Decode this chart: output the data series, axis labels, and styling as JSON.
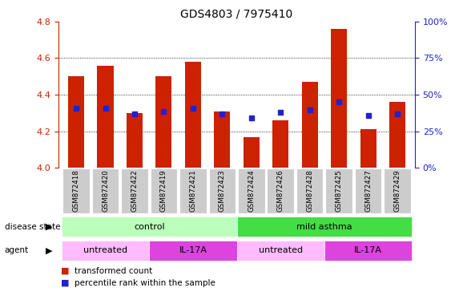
{
  "title": "GDS4803 / 7975410",
  "samples": [
    "GSM872418",
    "GSM872420",
    "GSM872422",
    "GSM872419",
    "GSM872421",
    "GSM872423",
    "GSM872424",
    "GSM872426",
    "GSM872428",
    "GSM872425",
    "GSM872427",
    "GSM872429"
  ],
  "bar_values": [
    4.5,
    4.56,
    4.3,
    4.5,
    4.58,
    4.31,
    4.17,
    4.26,
    4.47,
    4.76,
    4.21,
    4.36
  ],
  "blue_values": [
    4.325,
    4.325,
    4.295,
    4.31,
    4.325,
    4.295,
    4.275,
    4.305,
    4.315,
    4.36,
    4.285,
    4.295
  ],
  "bar_bottom": 4.0,
  "ylim": [
    4.0,
    4.8
  ],
  "yticks_left": [
    4.0,
    4.2,
    4.4,
    4.6,
    4.8
  ],
  "ytick_right_labels": [
    "0%",
    "25%",
    "50%",
    "75%",
    "100%"
  ],
  "bar_color": "#cc2200",
  "blue_color": "#2222cc",
  "disease_state_groups": [
    {
      "label": "control",
      "start": 0,
      "end": 6,
      "color": "#bbffbb"
    },
    {
      "label": "mild asthma",
      "start": 6,
      "end": 12,
      "color": "#44dd44"
    }
  ],
  "agent_groups": [
    {
      "label": "untreated",
      "start": 0,
      "end": 3,
      "color": "#ffbbff"
    },
    {
      "label": "IL-17A",
      "start": 3,
      "end": 6,
      "color": "#dd44dd"
    },
    {
      "label": "untreated",
      "start": 6,
      "end": 9,
      "color": "#ffbbff"
    },
    {
      "label": "IL-17A",
      "start": 9,
      "end": 12,
      "color": "#dd44dd"
    }
  ],
  "legend_items": [
    {
      "label": "transformed count",
      "color": "#cc2200"
    },
    {
      "label": "percentile rank within the sample",
      "color": "#2222cc"
    }
  ],
  "left_axis_color": "#cc2200",
  "right_axis_color": "#2222cc",
  "tick_bg_color": "#cccccc"
}
